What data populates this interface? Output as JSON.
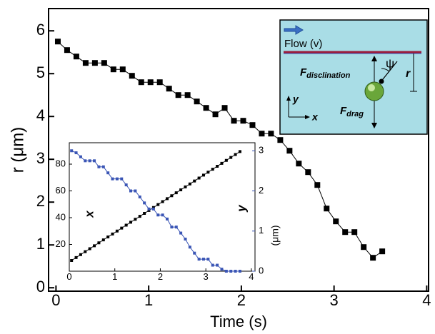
{
  "chart_data": [
    {
      "type": "line",
      "xlabel": "Time (s)",
      "ylabel": "r (μm)",
      "xlim": [
        -0.08,
        4.02
      ],
      "ylim": [
        -0.08,
        6.52
      ],
      "xticks": [
        0,
        1,
        2,
        3,
        4
      ],
      "yticks": [
        0,
        1,
        2,
        3,
        4,
        5,
        6
      ],
      "x": [
        0.02,
        0.12,
        0.22,
        0.32,
        0.42,
        0.52,
        0.62,
        0.72,
        0.82,
        0.92,
        1.02,
        1.12,
        1.22,
        1.32,
        1.42,
        1.52,
        1.62,
        1.72,
        1.82,
        1.92,
        2.02,
        2.12,
        2.22,
        2.32,
        2.42,
        2.52,
        2.62,
        2.72,
        2.82,
        2.92,
        3.02,
        3.12,
        3.22,
        3.32,
        3.42,
        3.52
      ],
      "series": [
        {
          "color": "#000000",
          "values": [
            5.75,
            5.55,
            5.4,
            5.25,
            5.25,
            5.25,
            5.1,
            5.1,
            4.95,
            4.8,
            4.8,
            4.8,
            4.65,
            4.5,
            4.5,
            4.35,
            4.2,
            4.05,
            4.2,
            3.9,
            3.9,
            3.8,
            3.6,
            3.6,
            3.45,
            3.2,
            2.9,
            2.7,
            2.4,
            1.85,
            1.55,
            1.3,
            1.3,
            0.95,
            0.7,
            0.85
          ]
        }
      ],
      "annotations": {
        "flow": "Flow (v)",
        "f_disc": "F",
        "f_disc_sub": "disclination",
        "psi": "ψ",
        "r": "r",
        "y": "y",
        "x": "x",
        "f_drag": "F",
        "f_drag_sub": "drag"
      }
    },
    {
      "type": "line",
      "ylabel": "x",
      "y2label": "y",
      "y2unit": "(μm)",
      "xlim": [
        0,
        4.08
      ],
      "ylim": [
        0,
        96
      ],
      "y2lim": [
        0,
        3.2
      ],
      "xticks": [
        0,
        1,
        2,
        3,
        4
      ],
      "yticks": [
        20,
        40,
        60,
        80
      ],
      "y2ticks": [
        0,
        1,
        2,
        3
      ],
      "x": [
        0.05,
        0.15,
        0.25,
        0.35,
        0.45,
        0.55,
        0.65,
        0.75,
        0.85,
        0.95,
        1.05,
        1.15,
        1.25,
        1.35,
        1.45,
        1.55,
        1.65,
        1.75,
        1.85,
        1.95,
        2.05,
        2.15,
        2.25,
        2.35,
        2.45,
        2.55,
        2.65,
        2.75,
        2.85,
        2.95,
        3.05,
        3.15,
        3.25,
        3.35,
        3.45,
        3.55,
        3.65,
        3.75
      ],
      "series": [
        {
          "color": "#000000",
          "values": [
            8,
            10.2,
            12.4,
            14.6,
            16.8,
            19,
            21.2,
            23.4,
            25.6,
            27.8,
            30,
            32.2,
            34.4,
            36.6,
            38.8,
            41,
            43.2,
            45.4,
            47.6,
            49.8,
            52,
            54.2,
            56.4,
            58.6,
            60.8,
            63,
            65.2,
            67.4,
            69.6,
            71.8,
            74,
            76.2,
            78.4,
            80.6,
            82.8,
            85,
            87.2,
            89.4
          ]
        },
        {
          "color": "#3a55b5",
          "axis": "y2",
          "values": [
            3.0,
            2.95,
            2.85,
            2.75,
            2.75,
            2.75,
            2.6,
            2.6,
            2.45,
            2.3,
            2.3,
            2.3,
            2.15,
            2.0,
            2.0,
            1.85,
            1.7,
            1.55,
            1.55,
            1.4,
            1.4,
            1.3,
            1.1,
            1.1,
            0.95,
            0.8,
            0.6,
            0.45,
            0.3,
            0.3,
            0.3,
            0.15,
            0.15,
            0.05,
            0,
            0,
            0,
            0
          ]
        }
      ]
    }
  ]
}
